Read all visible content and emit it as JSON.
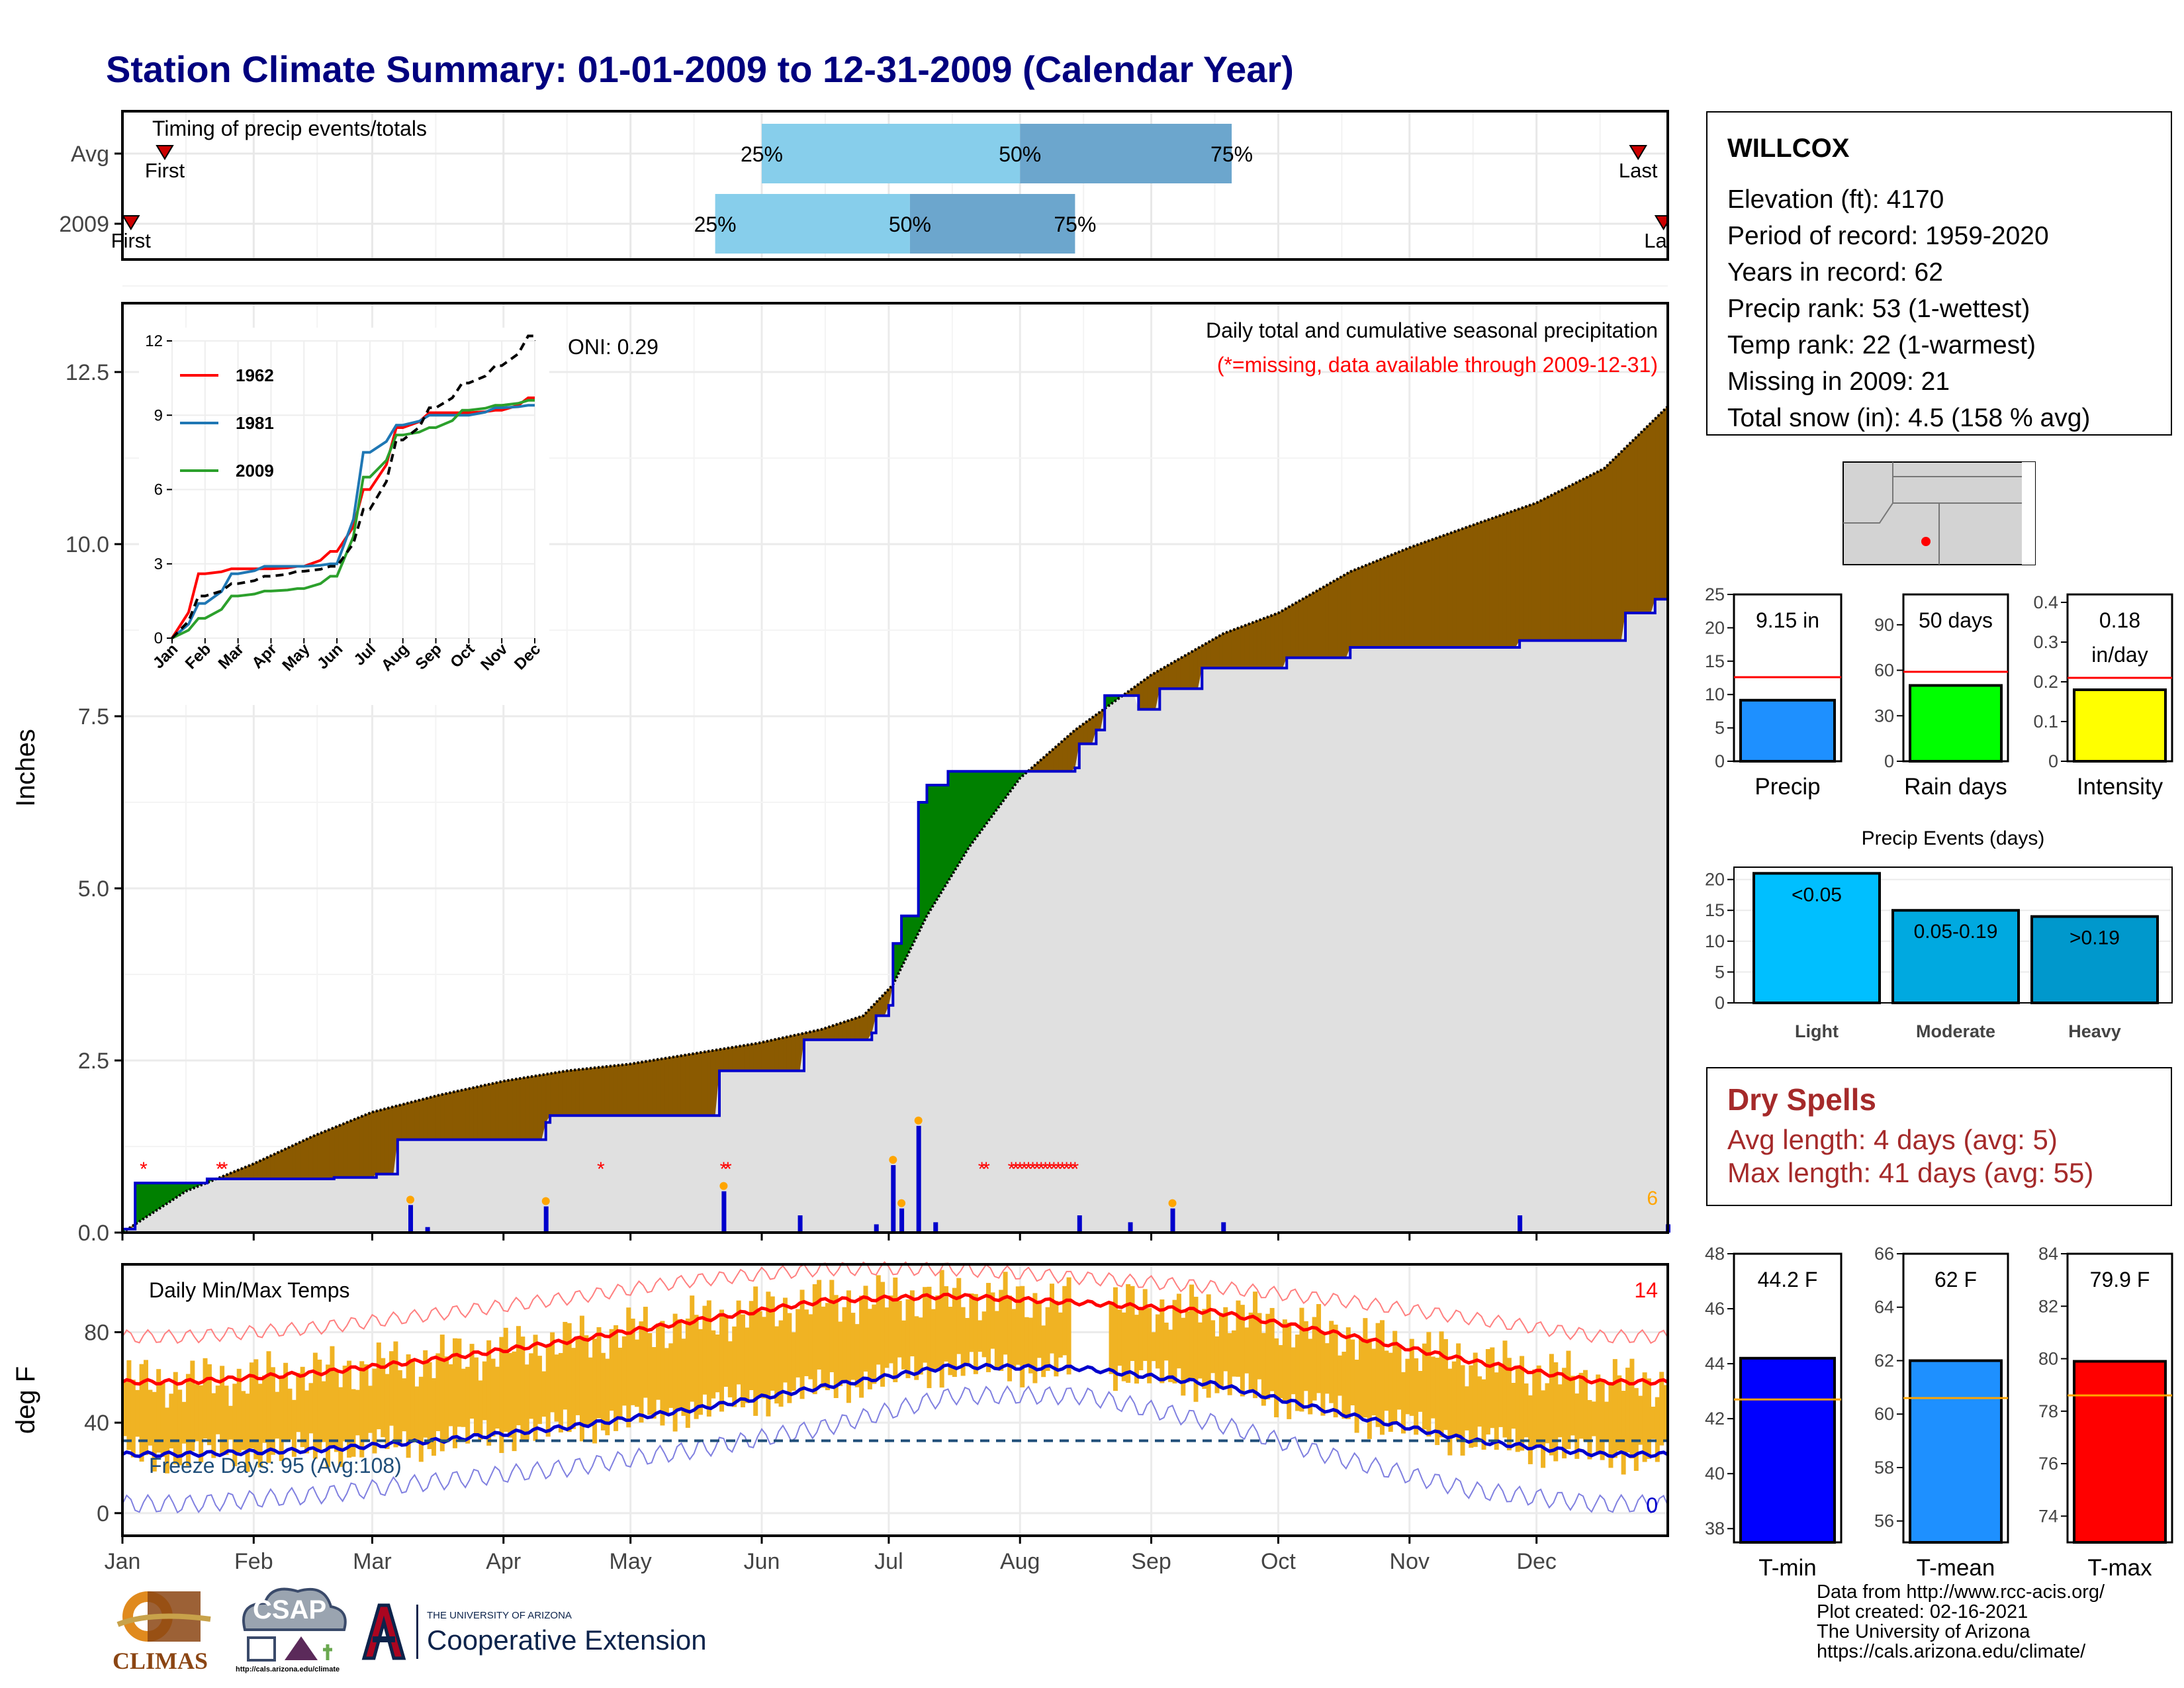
{
  "title": "Station Climate Summary: 01-01-2009 to 12-31-2009 (Calendar Year)",
  "station": {
    "name": "WILLCOX",
    "lines": [
      "Elevation (ft): 4170",
      "Period of record: 1959-2020",
      "Years in record: 62",
      "Precip rank: 53 (1-wettest)",
      "Temp rank: 22 (1-warmest)",
      "Missing in 2009: 21",
      "Total snow (in): 4.5 (158 % avg)"
    ]
  },
  "dry_spells": {
    "title": "Dry Spells",
    "avg": "Avg length: 4 days (avg: 5)",
    "max": "Max length: 41 days (avg: 55)"
  },
  "footer": [
    "Data from http://www.rcc-acis.org/",
    "Plot created: 02-16-2021",
    "The University of Arizona",
    "https://cals.arizona.edu/climate/"
  ],
  "logos": {
    "climas": "CLIMAS",
    "csap": "CSAP",
    "csap_url": "http://cals.arizona.edu/climate",
    "ua_small": "THE UNIVERSITY OF ARIZONA",
    "ua_large": "Cooperative Extension"
  },
  "colors": {
    "title": "#00007f",
    "above_avg": "#8b5a00",
    "below_avg": "#008000",
    "avg_fill": "#e0e0e0",
    "precip_line": "#0000cc",
    "tmax": "#ff0000",
    "tmin": "#0000cc",
    "bars": "#f0b323",
    "q1": "#87ceeb",
    "q2": "#6ca6cd"
  },
  "chart_data": [
    {
      "id": "timing",
      "type": "bar",
      "title": "Timing of precip events/totals",
      "rows": [
        {
          "label": "Avg",
          "first": "Jan 11",
          "last": "Dec 25",
          "q25": "Jun 1",
          "q50": "Aug 1",
          "q75": "Sep 20",
          "first_label": "First",
          "last_label": "Last"
        },
        {
          "label": "2009",
          "first": "Jan 3",
          "last": "Dec 31",
          "q25": "May 21",
          "q50": "Jul 6",
          "q75": "Aug 14",
          "first_label": "First",
          "last_label": "Last"
        }
      ],
      "quartile_labels": [
        "25%",
        "50%",
        "75%"
      ]
    },
    {
      "id": "precip",
      "type": "area",
      "title": "Daily total and cumulative seasonal precipitation",
      "subtitle": "(*=missing, data available through 2009-12-31)",
      "ylabel": "Inches",
      "ylim": [
        0,
        13.5
      ],
      "yticks": [
        0,
        2.5,
        5,
        7.5,
        10,
        12.5
      ],
      "oni": "ONI: 0.29",
      "count_label": "6",
      "avg_cumulative": {
        "days": [
          0,
          15,
          31,
          45,
          59,
          75,
          90,
          105,
          120,
          135,
          150,
          165,
          175,
          182,
          190,
          200,
          212,
          225,
          243,
          260,
          273,
          290,
          304,
          320,
          334,
          350,
          365
        ],
        "values": [
          0,
          0.6,
          1.0,
          1.4,
          1.75,
          2.0,
          2.2,
          2.35,
          2.45,
          2.6,
          2.75,
          2.95,
          3.15,
          3.6,
          4.6,
          5.6,
          6.6,
          7.3,
          8.1,
          8.7,
          9.0,
          9.6,
          9.95,
          10.3,
          10.6,
          11.1,
          12.0
        ]
      },
      "obs_cumulative": {
        "steps": [
          [
            0,
            0.05
          ],
          [
            3,
            0.72
          ],
          [
            20,
            0.78
          ],
          [
            50,
            0.8
          ],
          [
            60,
            0.85
          ],
          [
            65,
            1.35
          ],
          [
            100,
            1.6
          ],
          [
            101,
            1.7
          ],
          [
            140,
            1.7
          ],
          [
            141,
            2.35
          ],
          [
            160,
            2.35
          ],
          [
            161,
            2.8
          ],
          [
            177,
            2.9
          ],
          [
            178,
            3.15
          ],
          [
            181,
            3.3
          ],
          [
            182,
            4.2
          ],
          [
            184,
            4.6
          ],
          [
            188,
            6.25
          ],
          [
            190,
            6.5
          ],
          [
            195,
            6.7
          ],
          [
            225,
            6.75
          ],
          [
            226,
            7.1
          ],
          [
            230,
            7.3
          ],
          [
            232,
            7.8
          ],
          [
            240,
            7.6
          ],
          [
            245,
            7.9
          ],
          [
            255,
            8.2
          ],
          [
            275,
            8.35
          ],
          [
            290,
            8.5
          ],
          [
            330,
            8.6
          ],
          [
            355,
            9.0
          ],
          [
            362,
            9.2
          ],
          [
            365,
            9.2
          ]
        ]
      },
      "daily_precip": [
        {
          "day": 68,
          "value": 0.4
        },
        {
          "day": 72,
          "value": 0.08
        },
        {
          "day": 100,
          "value": 0.38
        },
        {
          "day": 142,
          "value": 0.6
        },
        {
          "day": 160,
          "value": 0.25
        },
        {
          "day": 178,
          "value": 0.12
        },
        {
          "day": 182,
          "value": 0.98
        },
        {
          "day": 184,
          "value": 0.35
        },
        {
          "day": 188,
          "value": 1.55
        },
        {
          "day": 192,
          "value": 0.15
        },
        {
          "day": 226,
          "value": 0.25
        },
        {
          "day": 238,
          "value": 0.15
        },
        {
          "day": 248,
          "value": 0.35
        },
        {
          "day": 260,
          "value": 0.15
        },
        {
          "day": 330,
          "value": 0.25
        },
        {
          "day": 365,
          "value": 0.12
        }
      ],
      "missing_days": [
        5,
        23,
        24,
        113,
        142,
        143,
        203,
        204,
        210,
        211,
        212,
        213,
        214,
        215,
        216,
        217,
        218,
        219,
        220,
        221,
        222,
        223,
        224,
        225
      ]
    },
    {
      "id": "inset",
      "type": "line",
      "x": [
        "Jan",
        "Feb",
        "Mar",
        "Apr",
        "May",
        "Jun",
        "Jul",
        "Aug",
        "Sep",
        "Oct",
        "Nov",
        "Dec"
      ],
      "ylim": [
        0,
        12
      ],
      "yticks": [
        0,
        3,
        6,
        9,
        12
      ],
      "series": [
        {
          "name": "1962",
          "color": "#ff0000",
          "values": [
            0,
            2.6,
            2.8,
            2.8,
            2.9,
            3.5,
            6.0,
            8.5,
            9.1,
            9.1,
            9.2,
            9.7
          ]
        },
        {
          "name": "1981",
          "color": "#1f77b4",
          "values": [
            0,
            1.4,
            2.6,
            2.9,
            2.9,
            3.0,
            7.5,
            8.6,
            9.0,
            9.0,
            9.3,
            9.4
          ]
        },
        {
          "name": "2009",
          "color": "#2ca02c",
          "values": [
            0,
            0.8,
            1.7,
            1.9,
            2.0,
            2.5,
            6.5,
            8.2,
            8.5,
            9.2,
            9.4,
            9.6
          ]
        },
        {
          "name": "avg",
          "color": "#000000",
          "dashed": true,
          "values": [
            0,
            1.7,
            2.2,
            2.5,
            2.7,
            2.9,
            5.2,
            8.0,
            9.3,
            10.3,
            11.0,
            12.2
          ]
        }
      ]
    },
    {
      "id": "temps",
      "type": "bar",
      "title": "Daily Min/Max Temps",
      "ylabel": "deg F",
      "ylim": [
        -10,
        110
      ],
      "yticks": [
        0,
        40,
        80
      ],
      "freeze": "Freeze Days: 95 (Avg:108)",
      "hot_count": "14",
      "cold_count": "0",
      "x_labels": [
        "Jan",
        "Feb",
        "Mar",
        "Apr",
        "May",
        "Jun",
        "Jul",
        "Aug",
        "Sep",
        "Oct",
        "Nov",
        "Dec"
      ],
      "avg_max": [
        58,
        62,
        68,
        76,
        85,
        94,
        96,
        93,
        89,
        79,
        67,
        58
      ],
      "avg_min": [
        26,
        28,
        32,
        38,
        46,
        56,
        65,
        64,
        57,
        44,
        32,
        26
      ],
      "rec_max": [
        78,
        82,
        88,
        95,
        103,
        108,
        108,
        104,
        100,
        94,
        86,
        78
      ],
      "rec_min": [
        4,
        8,
        14,
        20,
        28,
        38,
        52,
        52,
        40,
        24,
        10,
        4
      ]
    },
    {
      "id": "mini-precip",
      "type": "bar",
      "categories": [
        "Precip",
        "Rain days",
        "Intensity"
      ],
      "values": [
        9.15,
        50,
        0.18
      ],
      "averages": [
        12.6,
        59,
        0.21
      ],
      "value_labels": [
        "9.15 in",
        "50 days",
        "0.18 in/day"
      ],
      "ylims": [
        [
          0,
          25
        ],
        [
          0,
          110
        ],
        [
          0,
          0.42
        ]
      ],
      "yticks": [
        [
          0,
          5,
          10,
          15,
          20,
          25
        ],
        [
          0,
          30,
          60,
          90
        ],
        [
          0,
          0.1,
          0.2,
          0.3,
          0.4
        ]
      ],
      "colors": [
        "#1e90ff",
        "#00ff00",
        "#ffff00"
      ]
    },
    {
      "id": "events",
      "type": "bar",
      "title": "Precip Events (days)",
      "categories": [
        "Light",
        "Moderate",
        "Heavy"
      ],
      "bar_labels": [
        "<0.05",
        "0.05-0.19",
        ">0.19"
      ],
      "values": [
        21,
        15,
        14
      ],
      "ylim": [
        0,
        22
      ],
      "yticks": [
        0,
        5,
        10,
        15,
        20
      ],
      "colors": [
        "#00bfff",
        "#00a9e0",
        "#0098cc"
      ]
    },
    {
      "id": "mini-temp",
      "type": "bar",
      "categories": [
        "T-min",
        "T-mean",
        "T-max"
      ],
      "values": [
        44.2,
        62,
        79.9
      ],
      "averages": [
        42.7,
        60.6,
        78.6
      ],
      "value_labels": [
        "44.2 F",
        "62 F",
        "79.9 F"
      ],
      "ylims": [
        [
          37.5,
          48
        ],
        [
          55.2,
          66
        ],
        [
          73,
          84
        ]
      ],
      "yticks": [
        [
          38,
          40,
          42,
          44,
          46,
          48
        ],
        [
          56,
          58,
          60,
          62,
          64,
          66
        ],
        [
          74,
          76,
          78,
          80,
          82,
          84
        ]
      ],
      "colors": [
        "#0000ff",
        "#1e90ff",
        "#ff0000"
      ]
    }
  ]
}
